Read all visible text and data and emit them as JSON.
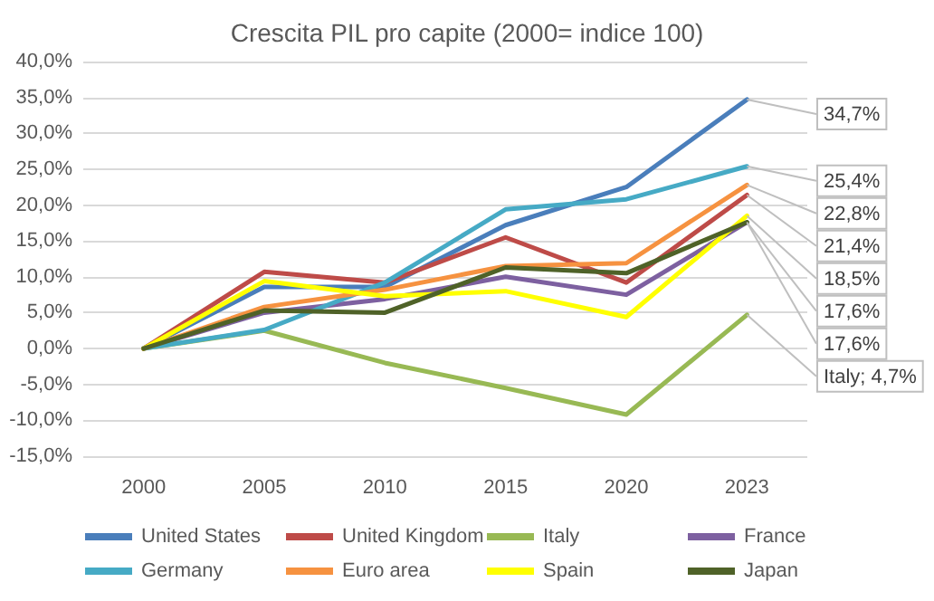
{
  "chart_data": {
    "type": "line",
    "title": "Crescita PIL pro capite (2000= indice 100)",
    "categories": [
      "2000",
      "2005",
      "2010",
      "2015",
      "2020",
      "2023"
    ],
    "series": [
      {
        "name": "United States",
        "color": "#4a7ebb",
        "values": [
          0,
          8.6,
          8.6,
          17.2,
          22.5,
          34.7
        ],
        "value_labels": [
          null,
          null,
          null,
          null,
          null,
          "34,7%"
        ]
      },
      {
        "name": "United Kingdom",
        "color": "#be4b48",
        "values": [
          0,
          10.7,
          9.2,
          15.5,
          9.2,
          21.4
        ],
        "value_labels": [
          null,
          null,
          null,
          null,
          null,
          "21,4%"
        ]
      },
      {
        "name": "Italy",
        "color": "#98b954",
        "values": [
          0,
          2.5,
          -2.0,
          -5.5,
          -9.2,
          4.7
        ],
        "value_labels": [
          null,
          null,
          null,
          null,
          null,
          "Italy; 4,7%"
        ]
      },
      {
        "name": "France",
        "color": "#7d60a0",
        "values": [
          0,
          5.0,
          6.9,
          10.0,
          7.5,
          17.6
        ],
        "value_labels": [
          null,
          null,
          null,
          null,
          null,
          "17,6%"
        ]
      },
      {
        "name": "Germany",
        "color": "#46aac5",
        "values": [
          0,
          2.6,
          9.2,
          19.4,
          20.8,
          25.4
        ],
        "value_labels": [
          null,
          null,
          null,
          null,
          null,
          "25,4%"
        ]
      },
      {
        "name": "Euro area",
        "color": "#f69240",
        "values": [
          0,
          5.8,
          8.2,
          11.5,
          11.9,
          22.8
        ],
        "value_labels": [
          null,
          null,
          null,
          null,
          null,
          "22,8%"
        ]
      },
      {
        "name": "Spain",
        "color": "#ffff00",
        "values": [
          0,
          9.4,
          7.3,
          8.0,
          4.4,
          18.5
        ],
        "value_labels": [
          null,
          null,
          null,
          null,
          null,
          "18,5%"
        ]
      },
      {
        "name": "Japan",
        "color": "#4f6228",
        "values": [
          0,
          5.3,
          5.0,
          11.3,
          10.5,
          17.6
        ],
        "value_labels": [
          null,
          null,
          null,
          null,
          null,
          "17,6%"
        ]
      }
    ],
    "ylim": [
      -15,
      40
    ],
    "yticks": [
      {
        "value": -15,
        "label": "-15,0%"
      },
      {
        "value": -10,
        "label": "-10,0%"
      },
      {
        "value": -5,
        "label": "-5,0%"
      },
      {
        "value": 0,
        "label": "0,0%"
      },
      {
        "value": 5,
        "label": "5,0%"
      },
      {
        "value": 10,
        "label": "10,0%"
      },
      {
        "value": 15,
        "label": "15,0%"
      },
      {
        "value": 20,
        "label": "20,0%"
      },
      {
        "value": 25,
        "label": "25,0%"
      },
      {
        "value": 30,
        "label": "30,0%"
      },
      {
        "value": 35,
        "label": "35,0%"
      },
      {
        "value": 40,
        "label": "40,0%"
      }
    ],
    "grid": "y",
    "legend": "bottom",
    "marker": "none"
  }
}
